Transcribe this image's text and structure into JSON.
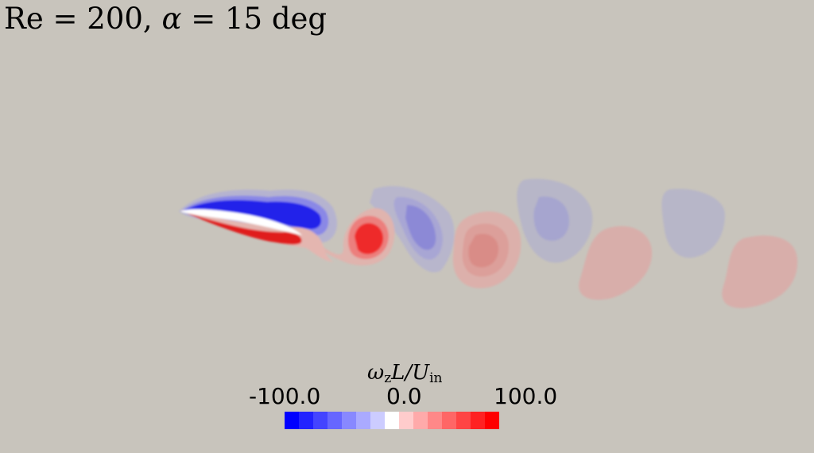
{
  "title": {
    "re_label": "Re",
    "re_value": "200",
    "alpha_symbol": "α",
    "alpha_value": "15",
    "alpha_unit": "deg"
  },
  "colorbar": {
    "label_main": "ω",
    "label_z": "z",
    "label_mid": "L/U",
    "label_sub": "in",
    "ticks": [
      "-100.0",
      "0.0",
      "100.0"
    ],
    "min": -100,
    "max": 100,
    "colors": [
      "#0000ff",
      "#2222ff",
      "#4444ff",
      "#6666ff",
      "#8888ff",
      "#aaaaff",
      "#ccccff",
      "#ffffff",
      "#ffcccc",
      "#ffaaaa",
      "#ff8888",
      "#ff6666",
      "#ff4444",
      "#ff2222",
      "#ff0000"
    ]
  }
}
